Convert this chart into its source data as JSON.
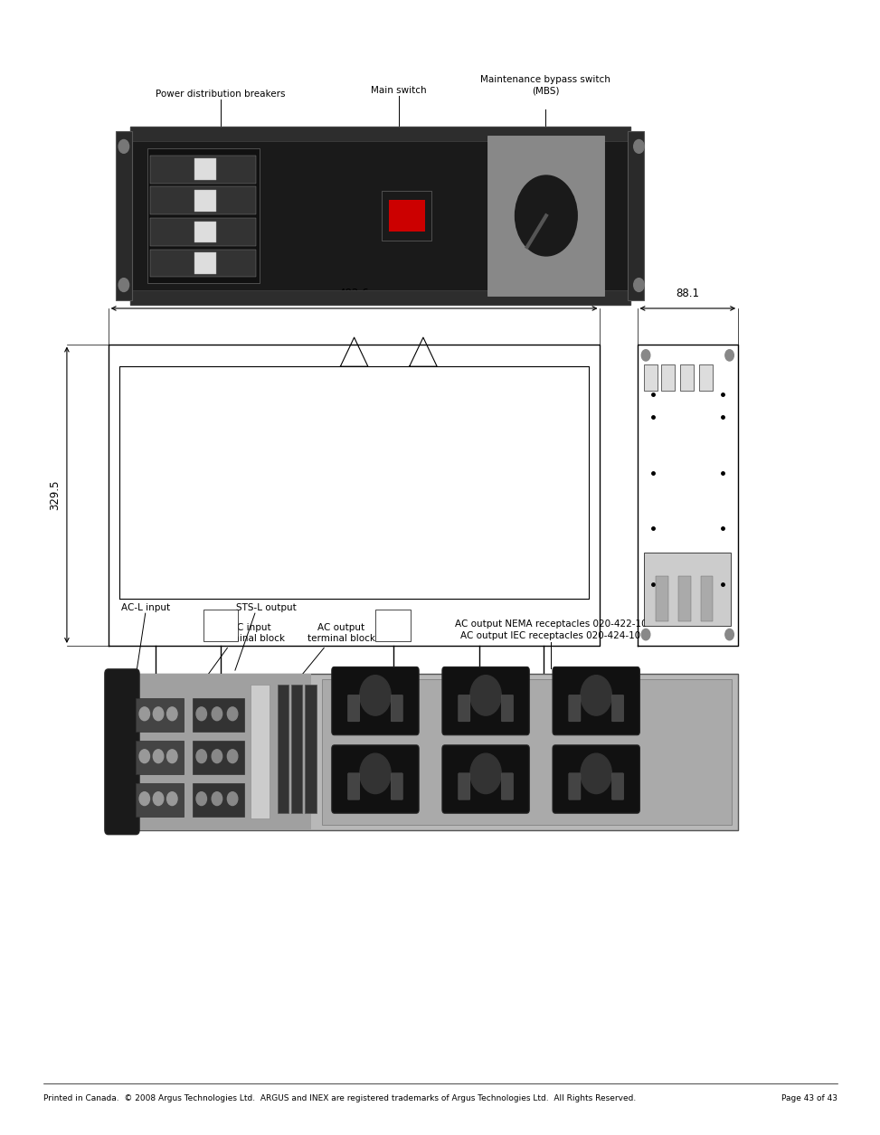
{
  "page_width": 9.54,
  "page_height": 12.35,
  "bg_color": "#ffffff",
  "footer_text": "Printed in Canada.  © 2008 Argus Technologies Ltd.  ARGUS and INEX are registered trademarks of Argus Technologies Ltd.  All Rights Reserved.",
  "page_num": "Page 43 of 43",
  "dim_label_482": "482.6",
  "dim_label_88": "88.1",
  "dim_label_329": "329.5"
}
